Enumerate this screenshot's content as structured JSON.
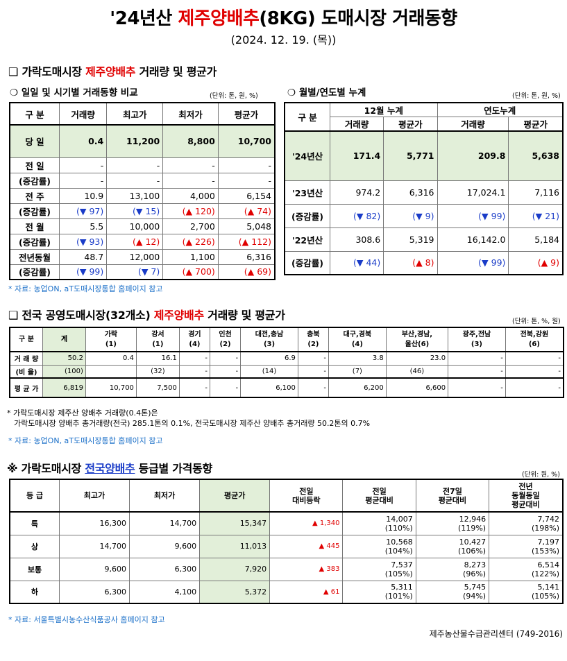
{
  "title_prefix": "'24년산 ",
  "title_red": "제주양배추",
  "title_suffix": "(8KG) 도매시장 거래동향",
  "date": "(2024. 12. 19. (목))",
  "sec1": {
    "heading_prefix": "가락도매시장 ",
    "heading_red": "제주양배추",
    "heading_suffix": " 거래량 및 평균가",
    "left_title": "일일 및 시기별 거래동향 비교",
    "left_unit": "(단위: 톤, 원, %)",
    "right_title": "월별/연도별 누계",
    "right_unit": "(단위: 톤, 원, %)",
    "left_headers": [
      "구 분",
      "거래량",
      "최고가",
      "최저가",
      "평균가"
    ],
    "left_rows": [
      {
        "label": "당 일",
        "vals": [
          "0.4",
          "11,200",
          "8,800",
          "10,700"
        ]
      },
      {
        "label": "전 일",
        "vals": [
          "-",
          "-",
          "-",
          "-"
        ]
      },
      {
        "label": "(증감률)",
        "vals": [
          "-",
          "-",
          "-",
          "-"
        ]
      },
      {
        "label": "전 주",
        "vals": [
          "10.9",
          "13,100",
          "4,000",
          "6,154"
        ]
      },
      {
        "label": "(증감률)",
        "vals": [
          "(▼ 97)",
          "(▼ 15)",
          "(▲ 120)",
          "(▲ 74)"
        ]
      },
      {
        "label": "전 월",
        "vals": [
          "5.5",
          "10,000",
          "2,700",
          "5,048"
        ]
      },
      {
        "label": "(증감률)",
        "vals": [
          "(▼ 93)",
          "(▲ 12)",
          "(▲ 226)",
          "(▲ 112)"
        ]
      },
      {
        "label": "전년동월",
        "vals": [
          "48.7",
          "12,000",
          "1,100",
          "6,316"
        ]
      },
      {
        "label": "(증감률)",
        "vals": [
          "(▼ 99)",
          "(▼ 7)",
          "(▲ 700)",
          "(▲ 69)"
        ]
      }
    ],
    "right_headers": {
      "gubun": "구 분",
      "dec": "12월 누계",
      "year": "연도누계",
      "qty": "거래량",
      "avg": "평균가"
    },
    "right_rows": [
      {
        "label": "'24년산",
        "vals": [
          "171.4",
          "5,771",
          "209.8",
          "5,638"
        ]
      },
      {
        "label": "'23년산",
        "vals": [
          "974.2",
          "6,316",
          "17,024.1",
          "7,116"
        ]
      },
      {
        "label": "(증감률)",
        "vals": [
          "(▼ 82)",
          "(▼ 9)",
          "(▼ 99)",
          "(▼ 21)"
        ]
      },
      {
        "label": "'22년산",
        "vals": [
          "308.6",
          "5,319",
          "16,142.0",
          "5,184"
        ]
      },
      {
        "label": "(증감률)",
        "vals": [
          "(▼ 44)",
          "(▲ 8)",
          "(▼ 99)",
          "(▲ 9)"
        ]
      }
    ],
    "note": "* 자료: 농업ON, aT도매시장통합 홈페이지 참고"
  },
  "sec2": {
    "heading_prefix": "전국 공영도매시장(32개소) ",
    "heading_red": "제주양배추",
    "heading_suffix": " 거래량 및 평균가",
    "unit": "(단위: 톤, %, 원)",
    "headers": [
      "구 분",
      "계",
      "가락\n(1)",
      "강서\n(1)",
      "경기\n(4)",
      "인천\n(2)",
      "대전,충남\n(3)",
      "충북\n(2)",
      "대구,경북\n(4)",
      "부산,경남,\n울산(6)",
      "광주,전남\n(3)",
      "전북,강원\n(6)"
    ],
    "rows": [
      {
        "label": "거 래 량",
        "vals": [
          "50.2",
          "0.4",
          "16.1",
          "-",
          "-",
          "6.9",
          "-",
          "3.8",
          "23.0",
          "-",
          "-"
        ]
      },
      {
        "label": "(비 율)",
        "vals": [
          "(100)",
          "",
          "(32)",
          "-",
          "-",
          "(14)",
          "-",
          "(7)",
          "(46)",
          "-",
          "-"
        ]
      },
      {
        "label": "평 균 가",
        "vals": [
          "6,819",
          "10,700",
          "7,500",
          "-",
          "-",
          "6,100",
          "-",
          "6,200",
          "6,600",
          "-",
          "-"
        ]
      }
    ],
    "note_line1": "* 가락도매시장 제주산 양배추 거래량(0.4톤)은",
    "note_line2": "가락도매시장 양배추 총거래량(전국) 285.1톤의 0.1%, 전국도매시장 제주산 양배추 총거래량 50.2톤의 0.7%",
    "note_source": "* 자료: 농업ON, aT도매시장통합 홈페이지 참고"
  },
  "sec3": {
    "heading_prefix": "※ 가락도매시장 ",
    "heading_blue": "전국양배추",
    "heading_suffix": " 등급별 가격동향",
    "unit": "(단위: 원, %)",
    "headers": [
      "등 급",
      "최고가",
      "최저가",
      "평균가",
      "전일\n대비등락",
      "전일\n평균대비",
      "전7일\n평균대비",
      "전년\n동월동일\n평균대비"
    ],
    "rows": [
      {
        "grade": "특",
        "max": "16,300",
        "min": "14,700",
        "avg": "15,347",
        "chg": "▲ 1,340",
        "prev": "14,007",
        "prev_pct": "(110%)",
        "prev7": "12,946",
        "prev7_pct": "(119%)",
        "ly": "7,742",
        "ly_pct": "(198%)"
      },
      {
        "grade": "상",
        "max": "14,700",
        "min": "9,600",
        "avg": "11,013",
        "chg": "▲ 445",
        "prev": "10,568",
        "prev_pct": "(104%)",
        "prev7": "10,427",
        "prev7_pct": "(106%)",
        "ly": "7,197",
        "ly_pct": "(153%)"
      },
      {
        "grade": "보통",
        "max": "9,600",
        "min": "6,300",
        "avg": "7,920",
        "chg": "▲ 383",
        "prev": "7,537",
        "prev_pct": "(105%)",
        "prev7": "8,273",
        "prev7_pct": "(96%)",
        "ly": "6,514",
        "ly_pct": "(122%)"
      },
      {
        "grade": "하",
        "max": "6,300",
        "min": "4,100",
        "avg": "5,372",
        "chg": "▲ 61",
        "prev": "5,311",
        "prev_pct": "(101%)",
        "prev7": "5,745",
        "prev7_pct": "(94%)",
        "ly": "5,141",
        "ly_pct": "(105%)"
      }
    ],
    "note": "* 자료: 서울특별시농수산식품공사 홈페이지 참고"
  },
  "footer": "제주농산물수급관리센터 (749-2016)"
}
